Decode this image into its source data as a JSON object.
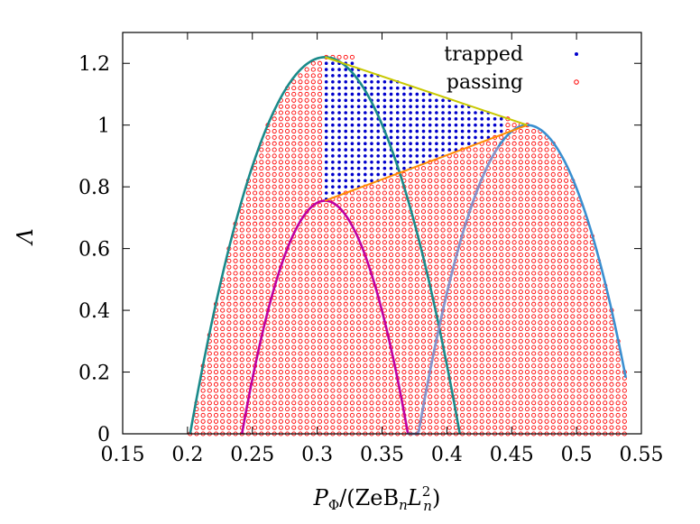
{
  "chart_data": {
    "type": "scatter",
    "xlabel": "P_Φ/(ZeB_nL_n²)",
    "xlabel_parts": {
      "main": "P",
      "sub": "Φ",
      "rest": "/(ZeB",
      "sub2": "n",
      "mid": "L",
      "sub3": "n",
      "sup3": "2",
      "close": ")"
    },
    "ylabel": "Λ",
    "xlim": [
      0.15,
      0.55
    ],
    "ylim": [
      0,
      1.3
    ],
    "x_ticks": [
      0.15,
      0.2,
      0.25,
      0.3,
      0.35,
      0.4,
      0.45,
      0.5,
      0.55
    ],
    "x_tick_labels": [
      "0.15",
      "0.2",
      "0.25",
      "0.3",
      "0.35",
      "0.4",
      "0.45",
      "0.5",
      "0.55"
    ],
    "y_ticks": [
      0,
      0.2,
      0.4,
      0.6,
      0.8,
      1.0,
      1.2
    ],
    "y_tick_labels": [
      "0",
      "0.2",
      "0.4",
      "0.6",
      "0.8",
      "1",
      "1.2"
    ],
    "legend": {
      "position": "top-right",
      "entries": [
        {
          "label": "trapped",
          "color": "#0000cc",
          "marker": "dot"
        },
        {
          "label": "passing",
          "color": "#ff0000",
          "marker": "circle"
        }
      ]
    },
    "grid_spacing": {
      "dx": 0.005,
      "dy": 0.02
    },
    "boundary_curves": [
      {
        "name": "",
        "color": "#1a8a8a",
        "shape": "parabola",
        "x_left": 0.202,
        "x_right": 0.41,
        "x_peak": 0.306,
        "y_peak": 1.22
      },
      {
        "name": "",
        "color": "#c000a0",
        "shape": "parabola",
        "x_left": 0.242,
        "x_right": 0.37,
        "x_peak": 0.306,
        "y_peak": 0.755
      },
      {
        "name": "",
        "color": "#3a8fd0",
        "shape": "parabola",
        "x_left": 0.37,
        "x_right": 0.538,
        "x_peak": 0.462,
        "y_peak": 1.0
      },
      {
        "name": "",
        "color": "#9090c8",
        "shape": "parabola",
        "x_left": 0.37,
        "x_right": 0.538,
        "x_peak": 0.462,
        "y_peak": 1.0,
        "segment_end_x": 0.44
      },
      {
        "name": "",
        "color": "#ff8c00",
        "shape": "line",
        "from": [
          0.306,
          0.755
        ],
        "to": [
          0.462,
          1.0
        ]
      },
      {
        "name": "",
        "color": "#c8c800",
        "shape": "line",
        "from": [
          0.306,
          1.22
        ],
        "to": [
          0.462,
          1.0
        ]
      }
    ],
    "trapped_region": {
      "x_min": 0.306,
      "x_max": 0.446,
      "description_rows": [
        {
          "y_min": 0.76,
          "y_max": 1.22,
          "x_min": 0.306,
          "x_max": 0.33
        }
      ]
    },
    "passing_region": {
      "x_min": 0.202,
      "x_max": 0.538,
      "y_min": 0.0,
      "top_cut_x": [
        0.306,
        0.37
      ],
      "top_cut_y": 1.22
    }
  }
}
